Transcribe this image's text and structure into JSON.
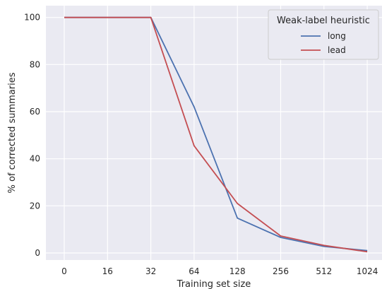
{
  "chart_data": {
    "type": "line",
    "categories": [
      "0",
      "16",
      "32",
      "64",
      "128",
      "256",
      "512",
      "1024"
    ],
    "series": [
      {
        "name": "long",
        "color": "#4c72b0",
        "values": [
          100,
          100,
          100,
          62,
          14.8,
          6.6,
          2.8,
          1.0
        ]
      },
      {
        "name": "lead",
        "color": "#c44e52",
        "values": [
          100,
          100,
          100,
          45.5,
          21,
          7.2,
          3.2,
          0.5
        ]
      }
    ],
    "xlabel": "Training set size",
    "ylabel": "% of corrected summaries",
    "ylim": [
      -3,
      105
    ],
    "yticks": [
      0,
      20,
      40,
      60,
      80,
      100
    ],
    "grid": true,
    "plot_background": "#eaeaf2",
    "grid_color": "#ffffff",
    "legend": {
      "title": "Weak-label heuristic",
      "placement": "top-right"
    }
  }
}
